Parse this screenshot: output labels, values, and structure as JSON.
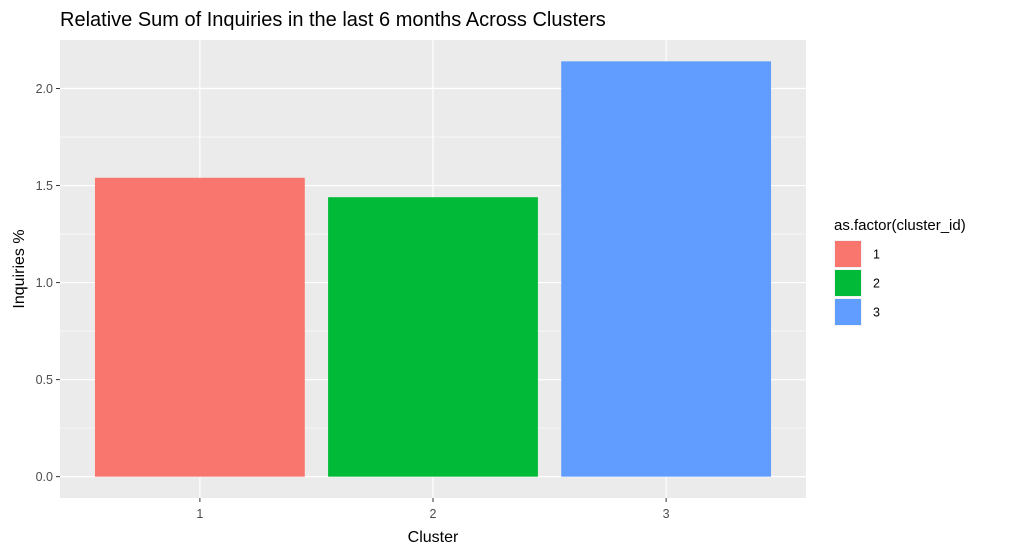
{
  "chart_data": {
    "type": "bar",
    "title": "Relative Sum of Inquiries in the last 6 months Across Clusters",
    "xlabel": "Cluster",
    "ylabel": "Inquiries %",
    "categories": [
      "1",
      "2",
      "3"
    ],
    "values": [
      1.54,
      1.44,
      2.14
    ],
    "colors": [
      "#F8766D",
      "#00BA38",
      "#619CFF"
    ],
    "ylim": [
      -0.11,
      2.25
    ],
    "yticks": [
      0.0,
      0.5,
      1.0,
      1.5,
      2.0
    ],
    "ytick_labels": [
      "0.0",
      "0.5",
      "1.0",
      "1.5",
      "2.0"
    ],
    "grid": true,
    "panel_background": "#EBEBEB",
    "legend": {
      "title": "as.factor(cluster_id)",
      "position": "right",
      "entries": [
        "1",
        "2",
        "3"
      ]
    }
  }
}
